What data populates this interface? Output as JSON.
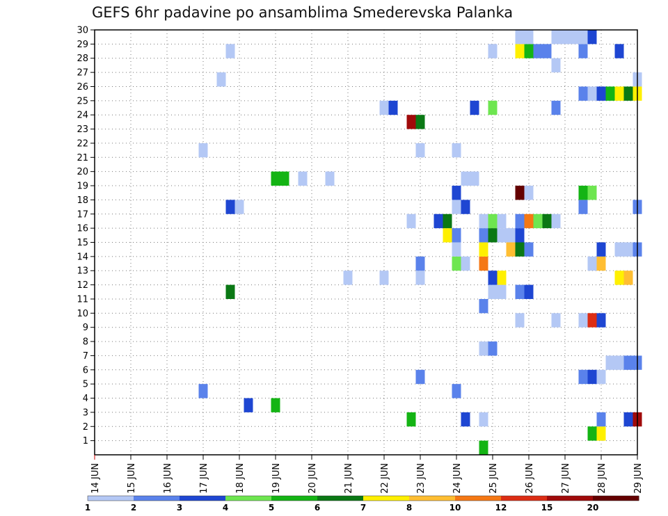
{
  "chart_data": {
    "type": "heatmap",
    "title": "GEFS 6hr padavine po ansamblima Smederevska Palanka",
    "x_ticks": [
      "14 JUN",
      "15 JUN",
      "16 JUN",
      "17 JUN",
      "18 JUN",
      "19 JUN",
      "20 JUN",
      "21 JUN",
      "22 JUN",
      "23 JUN",
      "24 JUN",
      "25 JUN",
      "26 JUN",
      "27 JUN",
      "28 JUN",
      "29 JUN"
    ],
    "y_ticks": [
      "30",
      "29",
      "28",
      "27",
      "26",
      "25",
      "24",
      "23",
      "22",
      "21",
      "20",
      "19",
      "18",
      "17",
      "16",
      "15",
      "14",
      "13",
      "12",
      "11",
      "10",
      "9",
      "8",
      "7",
      "6",
      "5",
      "4",
      "3",
      "2",
      "1"
    ],
    "x_range_days": [
      14,
      29
    ],
    "y_range_members": [
      0,
      30
    ],
    "grid": true,
    "legend": {
      "placement": "bottom",
      "labels": [
        "1",
        "2",
        "3",
        "4",
        "5",
        "6",
        "7",
        "8",
        "10",
        "12",
        "15",
        "20"
      ],
      "colors": [
        "#b4c8f5",
        "#5a82eb",
        "#1e46d2",
        "#6ee650",
        "#14b414",
        "#0a7814",
        "#fff000",
        "#ffbe32",
        "#f57814",
        "#dc2d14",
        "#a00a0a",
        "#640000"
      ]
    },
    "cells": [
      {
        "day": 24.75,
        "member": 0,
        "level": 4
      },
      {
        "day": 27.75,
        "member": 1,
        "level": 4
      },
      {
        "day": 28,
        "member": 1,
        "level": 6
      },
      {
        "day": 22.75,
        "member": 2,
        "level": 4
      },
      {
        "day": 24.25,
        "member": 2,
        "level": 2
      },
      {
        "day": 24.75,
        "member": 2,
        "level": 0
      },
      {
        "day": 28,
        "member": 2,
        "level": 1
      },
      {
        "day": 28.75,
        "member": 2,
        "level": 2
      },
      {
        "day": 29,
        "member": 2,
        "level": 10
      },
      {
        "day": 19,
        "member": 3,
        "level": 4
      },
      {
        "day": 18.25,
        "member": 3,
        "level": 2
      },
      {
        "day": 17,
        "member": 4,
        "level": 1
      },
      {
        "day": 24,
        "member": 4,
        "level": 1
      },
      {
        "day": 23,
        "member": 5,
        "level": 1
      },
      {
        "day": 27.5,
        "member": 5,
        "level": 1
      },
      {
        "day": 27.75,
        "member": 5,
        "level": 2
      },
      {
        "day": 28,
        "member": 5,
        "level": 0
      },
      {
        "day": 28.25,
        "member": 6,
        "level": 0
      },
      {
        "day": 28.5,
        "member": 6,
        "level": 0
      },
      {
        "day": 28.75,
        "member": 6,
        "level": 1
      },
      {
        "day": 29,
        "member": 6,
        "level": 1
      },
      {
        "day": 24.75,
        "member": 7,
        "level": 0
      },
      {
        "day": 25,
        "member": 7,
        "level": 1
      },
      {
        "day": 25.75,
        "member": 9,
        "level": 0
      },
      {
        "day": 26.75,
        "member": 9,
        "level": 0
      },
      {
        "day": 27.5,
        "member": 9,
        "level": 0
      },
      {
        "day": 27.75,
        "member": 9,
        "level": 9
      },
      {
        "day": 28,
        "member": 9,
        "level": 2
      },
      {
        "day": 24.75,
        "member": 10,
        "level": 1
      },
      {
        "day": 17.75,
        "member": 11,
        "level": 5
      },
      {
        "day": 25,
        "member": 11,
        "level": 0
      },
      {
        "day": 25.25,
        "member": 11,
        "level": 0
      },
      {
        "day": 25.75,
        "member": 11,
        "level": 1
      },
      {
        "day": 26,
        "member": 11,
        "level": 2
      },
      {
        "day": 21,
        "member": 12,
        "level": 0
      },
      {
        "day": 22,
        "member": 12,
        "level": 0
      },
      {
        "day": 23,
        "member": 12,
        "level": 0
      },
      {
        "day": 25,
        "member": 12,
        "level": 2
      },
      {
        "day": 25.25,
        "member": 12,
        "level": 6
      },
      {
        "day": 28.5,
        "member": 12,
        "level": 6
      },
      {
        "day": 28.75,
        "member": 12,
        "level": 7
      },
      {
        "day": 23,
        "member": 13,
        "level": 1
      },
      {
        "day": 24,
        "member": 13,
        "level": 3
      },
      {
        "day": 24.25,
        "member": 13,
        "level": 0
      },
      {
        "day": 24.75,
        "member": 13,
        "level": 8
      },
      {
        "day": 27.75,
        "member": 13,
        "level": 0
      },
      {
        "day": 28,
        "member": 13,
        "level": 7
      },
      {
        "day": 24,
        "member": 14,
        "level": 0
      },
      {
        "day": 24.75,
        "member": 14,
        "level": 6
      },
      {
        "day": 25.5,
        "member": 14,
        "level": 7
      },
      {
        "day": 25.75,
        "member": 14,
        "level": 5
      },
      {
        "day": 26,
        "member": 14,
        "level": 1
      },
      {
        "day": 28,
        "member": 14,
        "level": 2
      },
      {
        "day": 28.5,
        "member": 14,
        "level": 0
      },
      {
        "day": 28.75,
        "member": 14,
        "level": 0
      },
      {
        "day": 29,
        "member": 14,
        "level": 1
      },
      {
        "day": 23.75,
        "member": 15,
        "level": 6
      },
      {
        "day": 24,
        "member": 15,
        "level": 1
      },
      {
        "day": 24.75,
        "member": 15,
        "level": 1
      },
      {
        "day": 25,
        "member": 15,
        "level": 5
      },
      {
        "day": 25.25,
        "member": 15,
        "level": 0
      },
      {
        "day": 25.5,
        "member": 15,
        "level": 0
      },
      {
        "day": 25.75,
        "member": 15,
        "level": 2
      },
      {
        "day": 22.75,
        "member": 16,
        "level": 0
      },
      {
        "day": 23.5,
        "member": 16,
        "level": 2
      },
      {
        "day": 23.75,
        "member": 16,
        "level": 5
      },
      {
        "day": 24.75,
        "member": 16,
        "level": 0
      },
      {
        "day": 25,
        "member": 16,
        "level": 3
      },
      {
        "day": 25.25,
        "member": 16,
        "level": 0
      },
      {
        "day": 25.75,
        "member": 16,
        "level": 1
      },
      {
        "day": 26,
        "member": 16,
        "level": 8
      },
      {
        "day": 26.25,
        "member": 16,
        "level": 3
      },
      {
        "day": 26.5,
        "member": 16,
        "level": 5
      },
      {
        "day": 26.75,
        "member": 16,
        "level": 0
      },
      {
        "day": 17.75,
        "member": 17,
        "level": 2
      },
      {
        "day": 18,
        "member": 17,
        "level": 0
      },
      {
        "day": 24,
        "member": 17,
        "level": 0
      },
      {
        "day": 24.25,
        "member": 17,
        "level": 2
      },
      {
        "day": 27.5,
        "member": 17,
        "level": 1
      },
      {
        "day": 29,
        "member": 17,
        "level": 1
      },
      {
        "day": 24,
        "member": 18,
        "level": 2
      },
      {
        "day": 25.75,
        "member": 18,
        "level": 11
      },
      {
        "day": 26,
        "member": 18,
        "level": 0
      },
      {
        "day": 27.5,
        "member": 18,
        "level": 4
      },
      {
        "day": 27.75,
        "member": 18,
        "level": 3
      },
      {
        "day": 19,
        "member": 19,
        "level": 4
      },
      {
        "day": 19.25,
        "member": 19,
        "level": 4
      },
      {
        "day": 19.75,
        "member": 19,
        "level": 0
      },
      {
        "day": 20.5,
        "member": 19,
        "level": 0
      },
      {
        "day": 24.25,
        "member": 19,
        "level": 0
      },
      {
        "day": 24.5,
        "member": 19,
        "level": 0
      },
      {
        "day": 17,
        "member": 21,
        "level": 0
      },
      {
        "day": 23,
        "member": 21,
        "level": 0
      },
      {
        "day": 24,
        "member": 21,
        "level": 0
      },
      {
        "day": 22.75,
        "member": 23,
        "level": 10
      },
      {
        "day": 23,
        "member": 23,
        "level": 5
      },
      {
        "day": 22,
        "member": 24,
        "level": 0
      },
      {
        "day": 22.25,
        "member": 24,
        "level": 2
      },
      {
        "day": 24.5,
        "member": 24,
        "level": 2
      },
      {
        "day": 25,
        "member": 24,
        "level": 3
      },
      {
        "day": 26.75,
        "member": 24,
        "level": 1
      },
      {
        "day": 27.5,
        "member": 25,
        "level": 1
      },
      {
        "day": 27.75,
        "member": 25,
        "level": 0
      },
      {
        "day": 28,
        "member": 25,
        "level": 2
      },
      {
        "day": 28.25,
        "member": 25,
        "level": 4
      },
      {
        "day": 28.5,
        "member": 25,
        "level": 6
      },
      {
        "day": 28.75,
        "member": 25,
        "level": 5
      },
      {
        "day": 29,
        "member": 25,
        "level": 6
      },
      {
        "day": 17.5,
        "member": 26,
        "level": 0
      },
      {
        "day": 29,
        "member": 26,
        "level": 0
      },
      {
        "day": 26.75,
        "member": 27,
        "level": 0
      },
      {
        "day": 17.75,
        "member": 28,
        "level": 0
      },
      {
        "day": 25,
        "member": 28,
        "level": 0
      },
      {
        "day": 25.75,
        "member": 28,
        "level": 6
      },
      {
        "day": 26,
        "member": 28,
        "level": 4
      },
      {
        "day": 26.25,
        "member": 28,
        "level": 1
      },
      {
        "day": 26.5,
        "member": 28,
        "level": 1
      },
      {
        "day": 27.5,
        "member": 28,
        "level": 1
      },
      {
        "day": 28.5,
        "member": 28,
        "level": 2
      },
      {
        "day": 25.75,
        "member": 29,
        "level": 0
      },
      {
        "day": 26,
        "member": 29,
        "level": 0
      },
      {
        "day": 26.75,
        "member": 29,
        "level": 0
      },
      {
        "day": 27,
        "member": 29,
        "level": 0
      },
      {
        "day": 27.25,
        "member": 29,
        "level": 0
      },
      {
        "day": 27.5,
        "member": 29,
        "level": 0
      },
      {
        "day": 27.75,
        "member": 29,
        "level": 2
      }
    ]
  }
}
